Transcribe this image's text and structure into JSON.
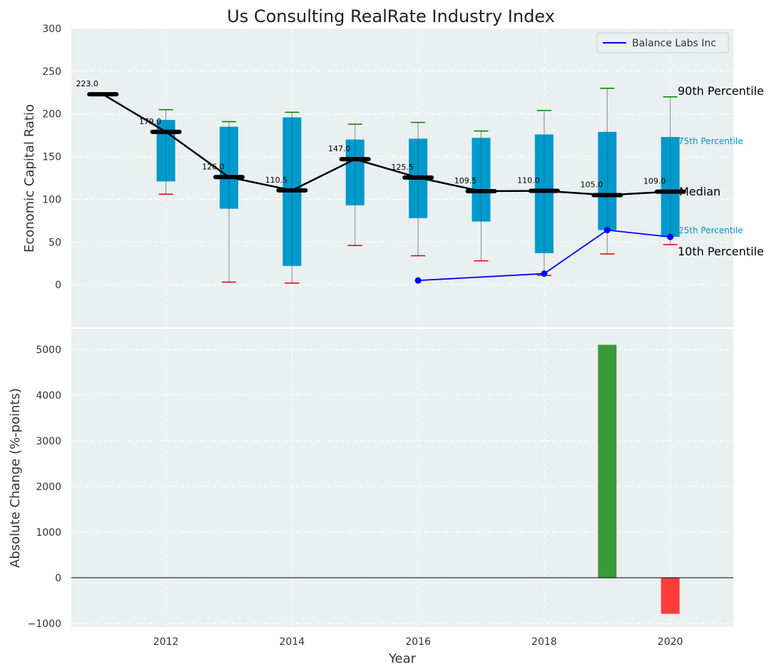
{
  "chart_data": [
    {
      "type": "box",
      "title": "Us Consulting RealRate Industry Index",
      "xlabel": "",
      "ylabel": "Economic Capital Ratio",
      "xlim": [
        2010.5,
        2021.0
      ],
      "ylim": [
        -50,
        300
      ],
      "yticks": [
        0,
        50,
        100,
        150,
        200,
        250,
        300
      ],
      "grid": true,
      "legend": {
        "position": "top-right",
        "entries": [
          {
            "name": "Balance Labs Inc",
            "color": "#0000ff"
          }
        ]
      },
      "box_color": "#0099cc",
      "percentile_labels": {
        "p90": "90th Percentile",
        "p75": "75th Percentile",
        "median": "Median",
        "p25": "25th Percentile",
        "p10": "10th Percentile"
      },
      "years": [
        2011,
        2012,
        2013,
        2014,
        2015,
        2016,
        2017,
        2018,
        2019,
        2020
      ],
      "median": [
        223.0,
        179.0,
        126.0,
        110.5,
        147.0,
        125.5,
        109.5,
        110.0,
        105.0,
        109.0
      ],
      "median_labels": [
        "223.0",
        "179.0",
        "126.0",
        "110.5",
        "147.0",
        "125.5",
        "109.5",
        "110.0",
        "105.0",
        "109.0"
      ],
      "p10": [
        null,
        106,
        3,
        2,
        46,
        34,
        28,
        11,
        36,
        47
      ],
      "p25": [
        null,
        121,
        89,
        22,
        93,
        78,
        74,
        37,
        64,
        56
      ],
      "p75": [
        null,
        193,
        185,
        196,
        170,
        171,
        172,
        176,
        179,
        173
      ],
      "p90": [
        null,
        205,
        191,
        202,
        188,
        190,
        180,
        204,
        230,
        220
      ],
      "series": [
        {
          "name": "Balance Labs Inc",
          "color": "#0000ff",
          "x": [
            2016,
            2018,
            2019,
            2020
          ],
          "values": [
            5,
            13,
            64,
            56
          ]
        }
      ]
    },
    {
      "type": "bar",
      "xlabel": "Year",
      "ylabel": "Absolute Change (%-points)",
      "xlim": [
        2010.5,
        2021.0
      ],
      "ylim": [
        -1080,
        5450
      ],
      "xticks": [
        2012,
        2014,
        2016,
        2018,
        2020
      ],
      "yticks": [
        -1000,
        0,
        1000,
        2000,
        3000,
        4000,
        5000
      ],
      "grid": true,
      "positive_color": "#3a9a3a",
      "negative_color": "#ff3b3b",
      "x": [
        2019,
        2020
      ],
      "values": [
        5100,
        -790
      ]
    }
  ]
}
